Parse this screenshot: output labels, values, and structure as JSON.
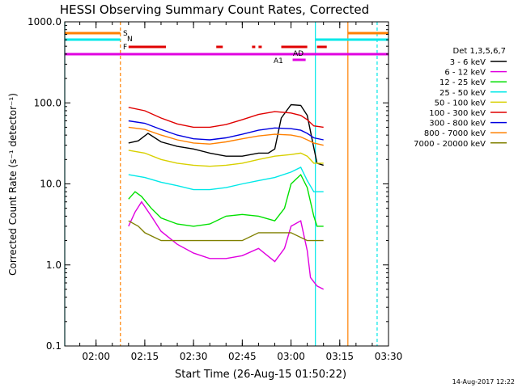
{
  "chart_data": {
    "type": "line",
    "title": "HESSI Observing Summary Count Rates, Corrected",
    "xlabel": "Start Time (26-Aug-15 01:50:22)",
    "ylabel": "Corrected Count Rate (s⁻¹ detector⁻¹)",
    "y_scale": "log",
    "ylim": [
      0.1,
      1000.0
    ],
    "xlim": [
      "01:50:22",
      "03:30:00"
    ],
    "x_ticks": [
      "02:00",
      "02:15",
      "02:30",
      "02:45",
      "03:00",
      "03:15",
      "03:30"
    ],
    "y_ticks": [
      "0.1",
      "1.0",
      "10.0",
      "100.0",
      "1000.0"
    ],
    "timestamp": "14-Aug-2017 12:22",
    "legend": {
      "title": "Det 1,3,5,6,7",
      "placement": "right, outside plot",
      "entries": [
        {
          "label": "3 - 6 keV",
          "color": "#000000"
        },
        {
          "label": "6 - 12 keV",
          "color": "#e000e0"
        },
        {
          "label": "12 - 25 keV",
          "color": "#00e000"
        },
        {
          "label": "25 - 50 keV",
          "color": "#00e8e8"
        },
        {
          "label": "50 - 100 keV",
          "color": "#d8d000"
        },
        {
          "label": "100 - 300 keV",
          "color": "#e00000"
        },
        {
          "label": "300 - 800 keV",
          "color": "#0000e0"
        },
        {
          "label": "800 - 7000 keV",
          "color": "#ff8000"
        },
        {
          "label": "7000 - 20000 keV",
          "color": "#808000"
        }
      ]
    },
    "flag_labels": {
      "S": "S",
      "N": "N",
      "F": "F",
      "AD": "AD",
      "A1": "A1"
    },
    "flags": [
      {
        "label": "S",
        "color": "#ff8000",
        "intervals": [
          [
            "01:50:22",
            "02:07:30"
          ],
          [
            "03:17:30",
            "03:30:00"
          ]
        ]
      },
      {
        "label": "N",
        "color": "#00e8e8",
        "intervals": [
          [
            "01:50:22",
            "02:07:30"
          ],
          [
            "03:07:30",
            "03:30:00"
          ]
        ]
      },
      {
        "label": "F",
        "color": "#e00000",
        "intervals": [
          [
            "02:10:00",
            "02:21:30"
          ],
          [
            "02:37:00",
            "02:39:00"
          ],
          [
            "02:48:00",
            "02:49:00"
          ],
          [
            "02:50:00",
            "02:51:00"
          ],
          [
            "02:57:00",
            "03:05:00"
          ],
          [
            "03:08:00",
            "03:11:00"
          ]
        ]
      },
      {
        "label": "AD",
        "color": "#e000e0",
        "intervals": [
          [
            "01:50:22",
            "03:30:00"
          ]
        ]
      },
      {
        "label": "A1",
        "color": "#e000e0",
        "intervals": [
          [
            "03:00:30",
            "03:04:30"
          ]
        ]
      }
    ],
    "markers": [
      {
        "time": "01:50:22",
        "color": "#00e8e8",
        "style": "solid"
      },
      {
        "time": "02:07:30",
        "color": "#ff8000",
        "style": "dashed"
      },
      {
        "time": "03:07:30",
        "color": "#00e8e8",
        "style": "solid"
      },
      {
        "time": "03:17:30",
        "color": "#ff8000",
        "style": "solid"
      },
      {
        "time": "03:26:30",
        "color": "#00e8e8",
        "style": "dashed"
      }
    ],
    "series": [
      {
        "name": "3 - 6 keV",
        "color": "#000000",
        "x": [
          "02:10",
          "02:13",
          "02:16",
          "02:20",
          "02:25",
          "02:30",
          "02:35",
          "02:40",
          "02:45",
          "02:50",
          "02:53",
          "02:55",
          "02:57",
          "03:00",
          "03:03",
          "03:05",
          "03:07",
          "03:08",
          "03:10"
        ],
        "y": [
          32,
          34,
          42,
          33,
          29,
          27,
          24,
          22,
          22,
          24,
          24,
          27,
          65,
          95,
          93,
          70,
          28,
          18,
          17
        ]
      },
      {
        "name": "6 - 12 keV",
        "color": "#e000e0",
        "x": [
          "02:10",
          "02:12",
          "02:14",
          "02:17",
          "02:20",
          "02:25",
          "02:30",
          "02:35",
          "02:40",
          "02:45",
          "02:50",
          "02:55",
          "02:58",
          "03:00",
          "03:03",
          "03:05",
          "03:06",
          "03:08",
          "03:10"
        ],
        "y": [
          3.0,
          4.5,
          6.0,
          4.0,
          2.6,
          1.8,
          1.4,
          1.2,
          1.2,
          1.3,
          1.6,
          1.1,
          1.6,
          3.0,
          3.5,
          1.5,
          0.7,
          0.55,
          0.5
        ]
      },
      {
        "name": "12 - 25 keV",
        "color": "#00e000",
        "x": [
          "02:10",
          "02:12",
          "02:14",
          "02:17",
          "02:20",
          "02:25",
          "02:30",
          "02:35",
          "02:40",
          "02:45",
          "02:50",
          "02:55",
          "02:58",
          "03:00",
          "03:03",
          "03:05",
          "03:07",
          "03:08",
          "03:10"
        ],
        "y": [
          6.5,
          8.0,
          7.0,
          5.0,
          3.8,
          3.2,
          3.0,
          3.2,
          4.0,
          4.2,
          4.0,
          3.5,
          5.0,
          10.0,
          13.0,
          9.0,
          4.0,
          3.0,
          3.0
        ]
      },
      {
        "name": "25 - 50 keV",
        "color": "#00e8e8",
        "x": [
          "02:10",
          "02:15",
          "02:20",
          "02:25",
          "02:30",
          "02:35",
          "02:40",
          "02:45",
          "02:50",
          "02:55",
          "03:00",
          "03:03",
          "03:05",
          "03:07",
          "03:10"
        ],
        "y": [
          13,
          12,
          10.5,
          9.5,
          8.5,
          8.5,
          9.0,
          10.0,
          11.0,
          12.0,
          14.0,
          16.0,
          11.0,
          8.0,
          8.0
        ]
      },
      {
        "name": "50 - 100 keV",
        "color": "#d8d000",
        "x": [
          "02:10",
          "02:15",
          "02:20",
          "02:25",
          "02:30",
          "02:35",
          "02:40",
          "02:45",
          "02:50",
          "02:55",
          "03:00",
          "03:03",
          "03:05",
          "03:07",
          "03:10"
        ],
        "y": [
          26,
          24,
          20,
          18,
          17,
          16.5,
          17,
          18,
          20,
          22,
          23,
          24,
          22,
          18,
          18
        ]
      },
      {
        "name": "100 - 300 keV",
        "color": "#e00000",
        "x": [
          "02:10",
          "02:15",
          "02:20",
          "02:25",
          "02:30",
          "02:35",
          "02:40",
          "02:45",
          "02:50",
          "02:55",
          "03:00",
          "03:03",
          "03:05",
          "03:07",
          "03:10"
        ],
        "y": [
          88,
          80,
          65,
          55,
          50,
          50,
          54,
          62,
          72,
          78,
          75,
          70,
          62,
          52,
          50
        ]
      },
      {
        "name": "300 - 800 keV",
        "color": "#0000e0",
        "x": [
          "02:10",
          "02:15",
          "02:20",
          "02:25",
          "02:30",
          "02:35",
          "02:40",
          "02:45",
          "02:50",
          "02:55",
          "03:00",
          "03:03",
          "03:05",
          "03:07",
          "03:10"
        ],
        "y": [
          60,
          56,
          47,
          40,
          36,
          35,
          37,
          41,
          46,
          49,
          48,
          46,
          42,
          37,
          35
        ]
      },
      {
        "name": "800 - 7000 keV",
        "color": "#ff8000",
        "x": [
          "02:10",
          "02:15",
          "02:20",
          "02:25",
          "02:30",
          "02:35",
          "02:40",
          "02:45",
          "02:50",
          "02:55",
          "03:00",
          "03:03",
          "03:05",
          "03:07",
          "03:10"
        ],
        "y": [
          50,
          47,
          40,
          35,
          32,
          31,
          33,
          36,
          39,
          41,
          40,
          38,
          35,
          32,
          30
        ]
      },
      {
        "name": "7000 - 20000 keV",
        "color": "#808000",
        "x": [
          "02:10",
          "02:13",
          "02:15",
          "02:20",
          "02:25",
          "02:30",
          "02:35",
          "02:40",
          "02:45",
          "02:50",
          "02:55",
          "03:00",
          "03:05",
          "03:10"
        ],
        "y": [
          3.5,
          3.0,
          2.5,
          2.0,
          2.0,
          2.0,
          2.0,
          2.0,
          2.0,
          2.5,
          2.5,
          2.5,
          2.0,
          2.0
        ]
      }
    ]
  }
}
